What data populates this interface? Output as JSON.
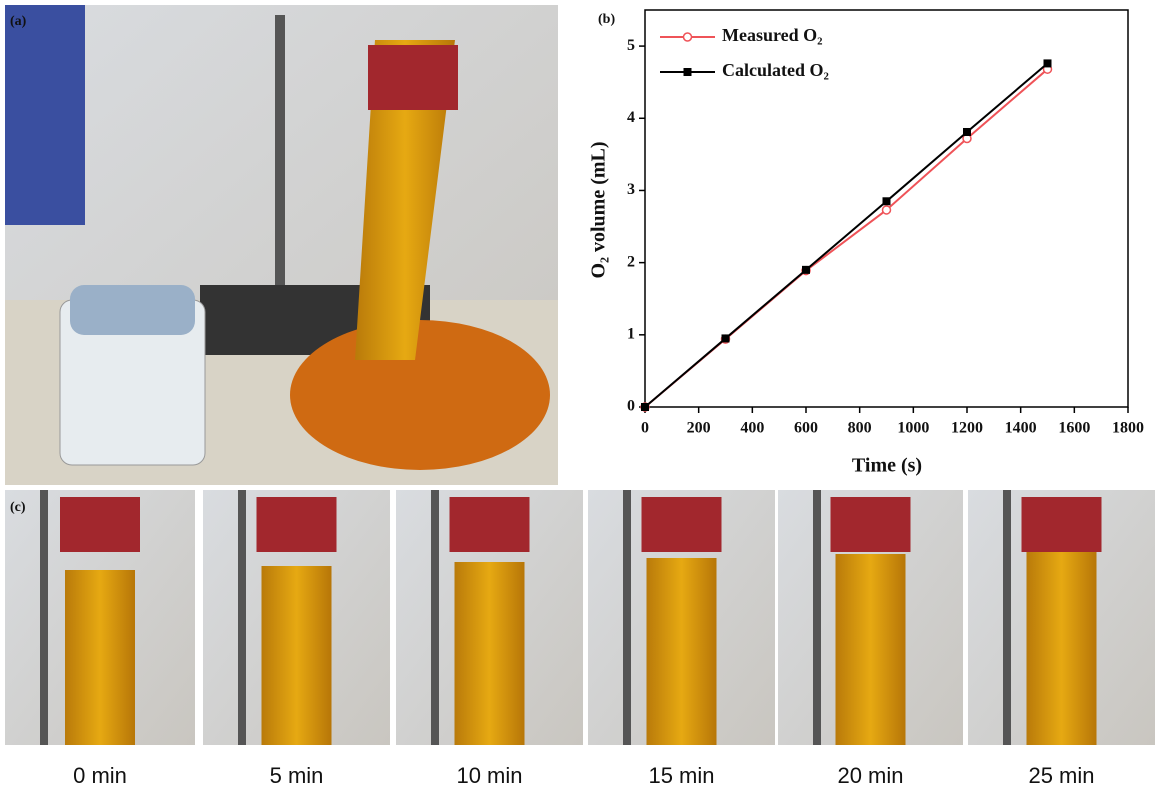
{
  "panel_labels": [
    "(a)",
    "(c)"
  ],
  "time_labels": [
    "0 min",
    "5 min",
    "10 min",
    "15 min",
    "20 min",
    "25 min"
  ],
  "chart_data": {
    "type": "line",
    "panel_label": "(b)",
    "xlabel": "Time (s)",
    "ylabel": "O₂ volume (mL)",
    "x": [
      0,
      300,
      600,
      900,
      1200,
      1500
    ],
    "series": [
      {
        "name": "Measured O₂",
        "color": "#ef5358",
        "marker": "open-circle",
        "values": [
          0,
          0.94,
          1.89,
          2.73,
          3.72,
          4.68
        ]
      },
      {
        "name": "Calculated O₂",
        "color": "#000000",
        "marker": "square",
        "values": [
          0,
          0.95,
          1.9,
          2.85,
          3.81,
          4.76
        ]
      }
    ],
    "xlim": [
      0,
      1800
    ],
    "xticks": [
      0,
      200,
      400,
      600,
      800,
      1000,
      1200,
      1400,
      1600,
      1800
    ],
    "ylim": [
      0,
      5.5
    ],
    "yticks": [
      0,
      1,
      2,
      3,
      4,
      5
    ],
    "legend": "upper-left",
    "grid": false
  }
}
